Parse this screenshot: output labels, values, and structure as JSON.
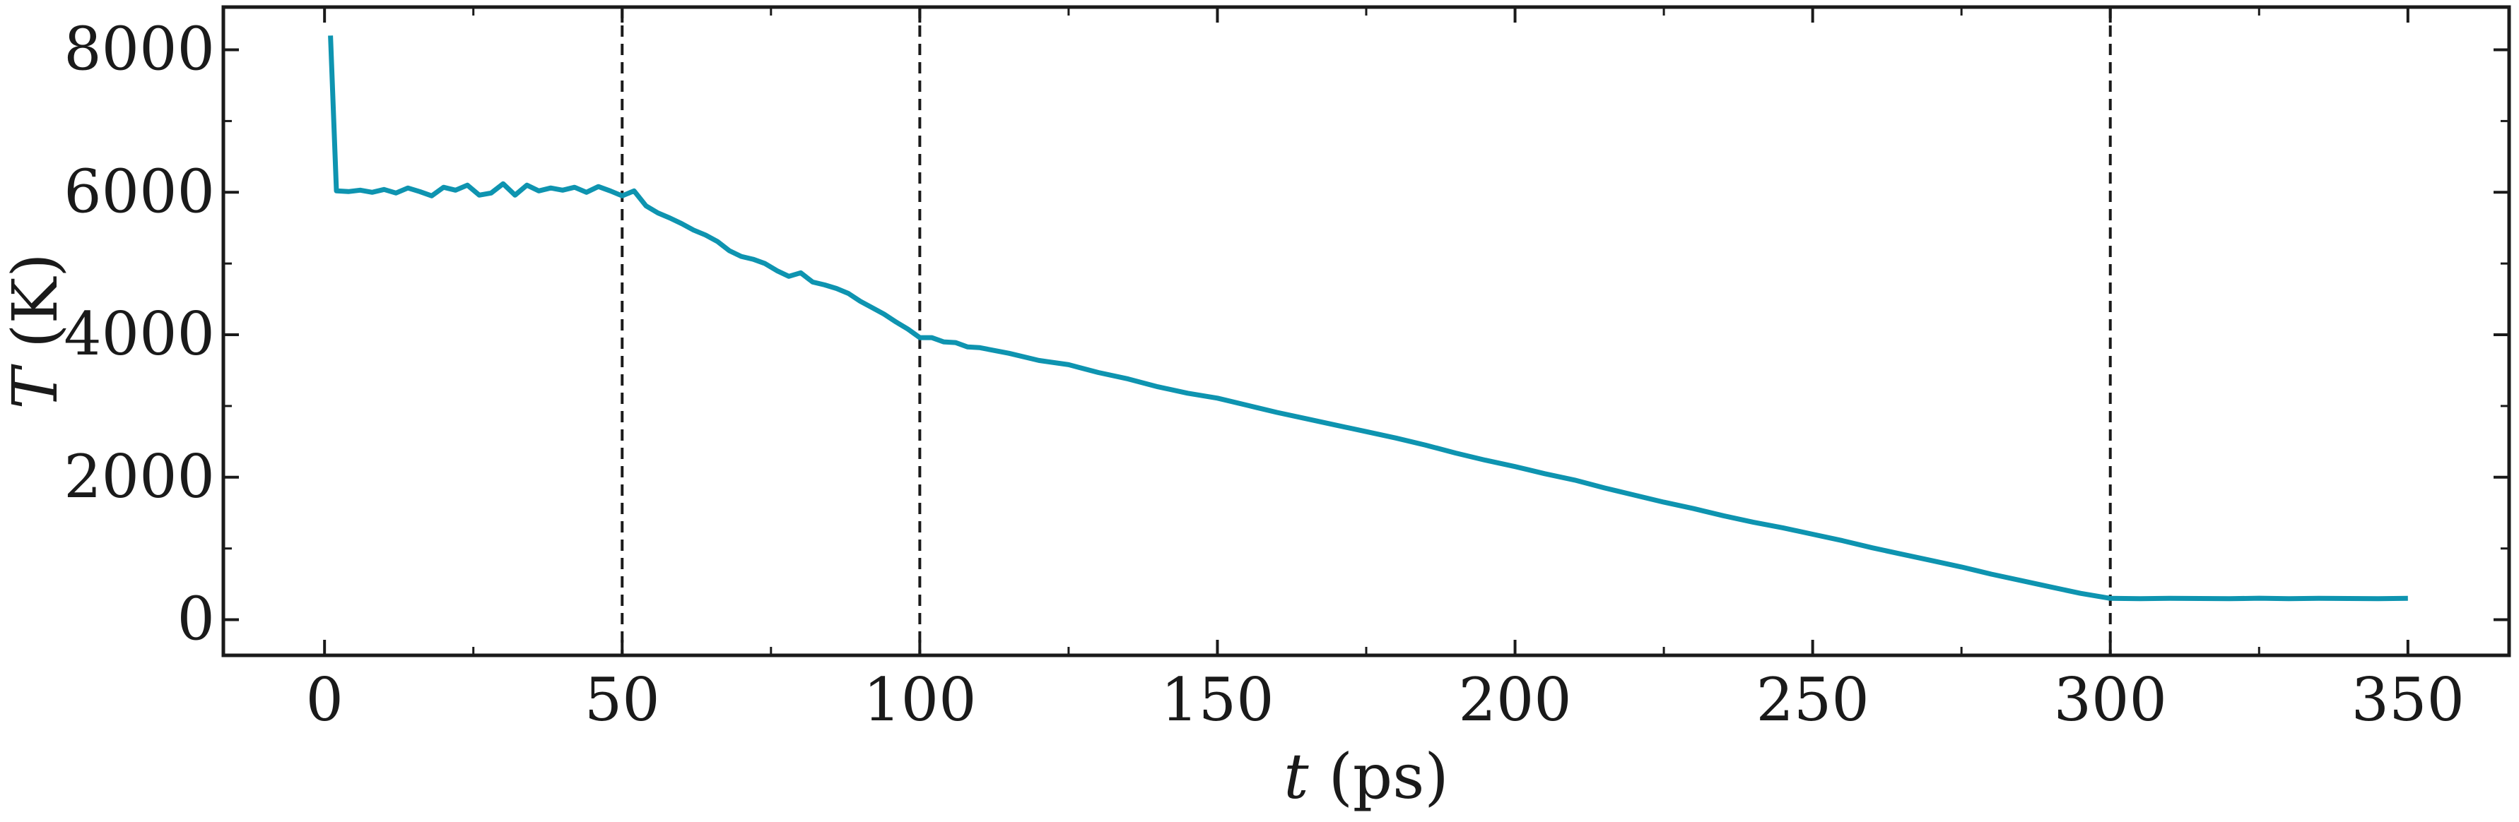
{
  "chart_data": {
    "type": "line",
    "xlabel": {
      "symbol": "t",
      "unit": "(ps)"
    },
    "ylabel": {
      "symbol": "T",
      "unit": "(K)"
    },
    "xlim": [
      -17,
      367
    ],
    "ylim": [
      -500,
      8600
    ],
    "x_ticks": [
      0,
      50,
      100,
      150,
      200,
      250,
      300,
      350
    ],
    "x_tick_labels": [
      "0",
      "50",
      "100",
      "150",
      "200",
      "250",
      "300",
      "350"
    ],
    "x_minor_ticks": [
      25,
      75,
      125,
      175,
      225,
      275,
      325
    ],
    "y_ticks": [
      0,
      2000,
      4000,
      6000,
      8000
    ],
    "y_tick_labels": [
      "0",
      "2000",
      "4000",
      "6000",
      "8000"
    ],
    "y_minor_ticks": [
      1000,
      3000,
      5000,
      7000
    ],
    "vlines": [
      50,
      100,
      300
    ],
    "grid": false,
    "line_color": "#0e94b0",
    "vline_color": "#1a1a1a",
    "series": [
      {
        "x": [
          1,
          2,
          4,
          6,
          8,
          10,
          12,
          14,
          16,
          18,
          20,
          22,
          24,
          26,
          28,
          30,
          32,
          34,
          36,
          38,
          40,
          42,
          44,
          46,
          48,
          50,
          52,
          54,
          56,
          58,
          60,
          62,
          64,
          66,
          68,
          70,
          72,
          74,
          76,
          78,
          80,
          82,
          84,
          86,
          88,
          90,
          92,
          94,
          96,
          98,
          100,
          102,
          104,
          106,
          108,
          110,
          115,
          120,
          125,
          130,
          135,
          140,
          145,
          150,
          155,
          160,
          165,
          170,
          175,
          180,
          185,
          190,
          195,
          200,
          205,
          210,
          215,
          220,
          225,
          230,
          235,
          240,
          245,
          250,
          255,
          260,
          265,
          270,
          275,
          280,
          285,
          290,
          295,
          300,
          305,
          310,
          315,
          320,
          325,
          330,
          335,
          340,
          345,
          350
        ],
        "y": [
          8200,
          6020,
          6010,
          6030,
          6000,
          6040,
          5990,
          6060,
          6010,
          5950,
          6070,
          6030,
          6100,
          5960,
          5990,
          6120,
          5960,
          6100,
          6020,
          6060,
          6030,
          6070,
          6000,
          6080,
          6020,
          5950,
          6020,
          5810,
          5710,
          5640,
          5560,
          5470,
          5400,
          5310,
          5180,
          5100,
          5060,
          5000,
          4900,
          4820,
          4870,
          4740,
          4700,
          4650,
          4580,
          4470,
          4380,
          4290,
          4180,
          4080,
          3960,
          3960,
          3900,
          3890,
          3830,
          3820,
          3740,
          3640,
          3580,
          3470,
          3380,
          3270,
          3180,
          3110,
          3010,
          2910,
          2820,
          2730,
          2640,
          2550,
          2450,
          2340,
          2240,
          2150,
          2050,
          1960,
          1850,
          1750,
          1650,
          1560,
          1460,
          1370,
          1290,
          1200,
          1110,
          1010,
          920,
          830,
          740,
          640,
          550,
          460,
          370,
          300,
          295,
          300,
          298,
          295,
          302,
          296,
          300,
          298,
          296,
          300
        ]
      }
    ]
  }
}
